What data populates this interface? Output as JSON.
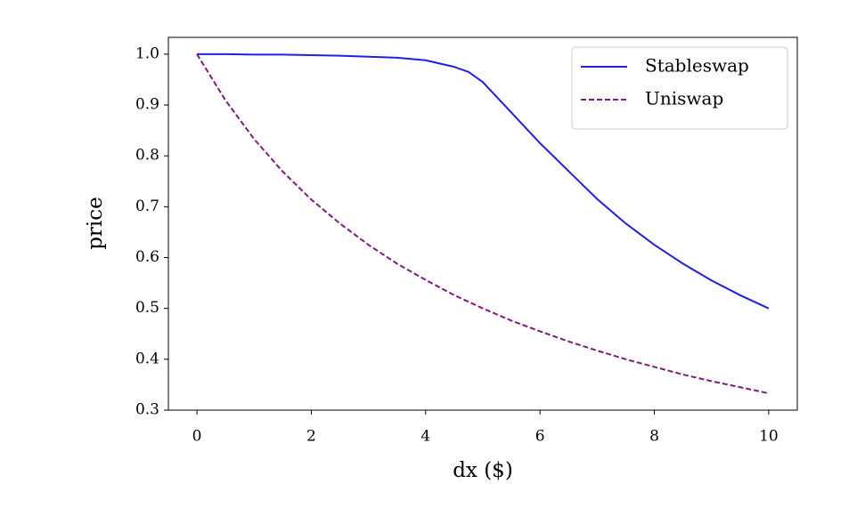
{
  "chart_data": {
    "type": "line",
    "xlabel": "dx ($)",
    "ylabel": "price",
    "x": [
      0,
      0.5,
      1,
      1.5,
      2,
      2.5,
      3,
      3.5,
      4,
      4.5,
      4.75,
      5,
      5.25,
      5.5,
      6,
      6.5,
      7,
      7.5,
      8,
      8.5,
      9,
      9.5,
      10
    ],
    "series": [
      {
        "name": "Stableswap",
        "color": "#1f1fe6",
        "linestyle": "solid",
        "values": [
          1.0,
          1.0,
          0.999,
          0.999,
          0.998,
          0.997,
          0.995,
          0.993,
          0.988,
          0.975,
          0.965,
          0.945,
          0.915,
          0.885,
          0.825,
          0.77,
          0.715,
          0.667,
          0.625,
          0.588,
          0.555,
          0.526,
          0.5
        ]
      },
      {
        "name": "Uniswap",
        "color": "#7f1a7f",
        "linestyle": "dashed",
        "values": [
          1.0,
          0.909,
          0.833,
          0.769,
          0.714,
          0.667,
          0.625,
          0.588,
          0.556,
          0.526,
          0.513,
          0.5,
          0.488,
          0.476,
          0.455,
          0.435,
          0.417,
          0.4,
          0.385,
          0.37,
          0.357,
          0.345,
          0.333
        ]
      }
    ],
    "xlim": [
      -0.5,
      10.5
    ],
    "xticks": [
      0,
      2,
      4,
      6,
      8,
      10
    ],
    "ylim": [
      0.3,
      1.033
    ],
    "yticks": [
      0.3,
      0.4,
      0.5,
      0.6,
      0.7,
      0.8,
      0.9,
      {
        "value": 1,
        "label": "1.0"
      }
    ],
    "legend": "upper right"
  }
}
